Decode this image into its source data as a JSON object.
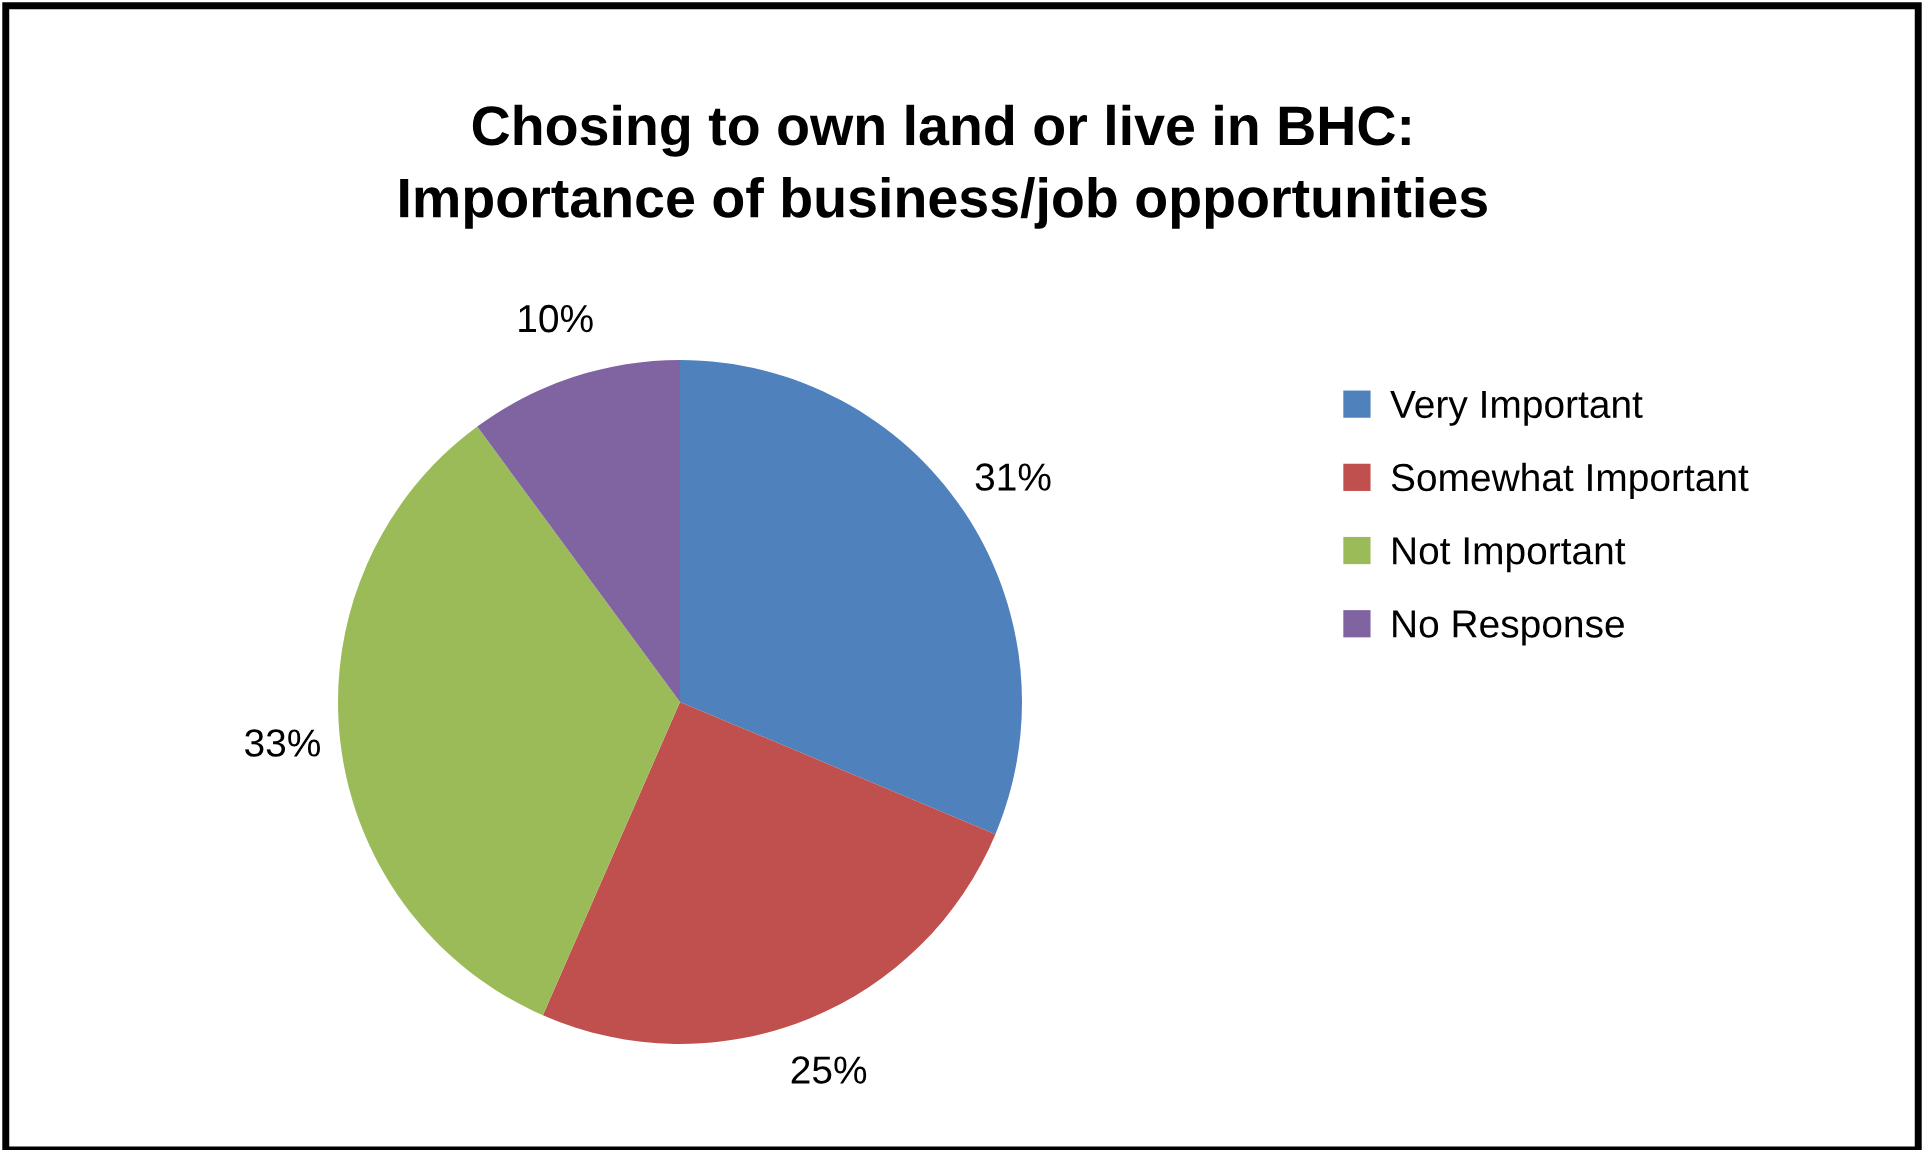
{
  "chart_data": {
    "type": "pie",
    "title": "Chosing to own land or live in BHC:\nImportance of business/job opportunities",
    "categories": [
      "Very Important",
      "Somewhat Important",
      "Not Important",
      "No Response"
    ],
    "values": [
      31,
      25,
      33,
      10
    ],
    "colors": [
      "#4f81bd",
      "#c0504d",
      "#9bbb59",
      "#8064a2"
    ],
    "value_labels": [
      "31%",
      "25%",
      "33%",
      "10%"
    ],
    "legend": "right"
  }
}
